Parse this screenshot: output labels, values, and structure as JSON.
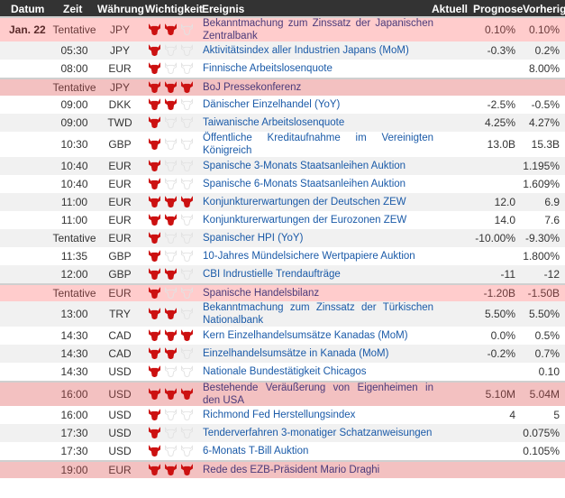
{
  "header": {
    "date": "Datum",
    "time": "Zeit",
    "currency": "Währung",
    "importance": "Wichtigkeit",
    "event": "Ereignis",
    "actual": "Aktuell",
    "forecast": "Prognose",
    "previous": "Vorherig"
  },
  "colors": {
    "bull_active": "#cc1111",
    "bull_inactive": "#e2e2e2",
    "header_bg": "#333333",
    "highlight": "#ffcccc",
    "highlight_dark": "#f3c1c1",
    "link": "#1a5aa8"
  },
  "rows": [
    {
      "date": "Jan. 22",
      "time": "Tentative",
      "currency": "JPY",
      "importance": 2,
      "event": "Bekanntmachung zum Zinssatz der Japanischen Zentralbank",
      "actual": "",
      "forecast": "0.10%",
      "previous": "0.10%",
      "style": "hi",
      "double": true
    },
    {
      "time": "05:30",
      "currency": "JPY",
      "importance": 1,
      "event": "Aktivitätsindex aller Industrien Japans (MoM)",
      "actual": "",
      "forecast": "-0.3%",
      "previous": "0.2%",
      "style": "alt"
    },
    {
      "time": "08:00",
      "currency": "EUR",
      "importance": 1,
      "event": "Finnische Arbeitslosenquote",
      "actual": "",
      "forecast": "",
      "previous": "8.00%",
      "style": ""
    },
    {
      "time": "Tentative",
      "currency": "JPY",
      "importance": 3,
      "event": "BoJ Pressekonferenz",
      "actual": "",
      "forecast": "",
      "previous": "",
      "style": "hi2"
    },
    {
      "time": "09:00",
      "currency": "DKK",
      "importance": 2,
      "event": "Dänischer Einzelhandel (YoY)",
      "actual": "",
      "forecast": "-2.5%",
      "previous": "-0.5%",
      "style": ""
    },
    {
      "time": "09:00",
      "currency": "TWD",
      "importance": 1,
      "event": "Taiwanische Arbeitslosenquote",
      "actual": "",
      "forecast": "4.25%",
      "previous": "4.27%",
      "style": "alt"
    },
    {
      "time": "10:30",
      "currency": "GBP",
      "importance": 1,
      "event": "Öffentliche Kreditaufnahme im Vereinigten Königreich",
      "actual": "",
      "forecast": "13.0B",
      "previous": "15.3B",
      "style": "",
      "double": true
    },
    {
      "time": "10:40",
      "currency": "EUR",
      "importance": 1,
      "event": "Spanische 3-Monats Staatsanleihen Auktion",
      "actual": "",
      "forecast": "",
      "previous": "1.195%",
      "style": "alt"
    },
    {
      "time": "10:40",
      "currency": "EUR",
      "importance": 1,
      "event": "Spanische 6-Monats Staatsanleihen Auktion",
      "actual": "",
      "forecast": "",
      "previous": "1.609%",
      "style": ""
    },
    {
      "time": "11:00",
      "currency": "EUR",
      "importance": 3,
      "event": "Konjunkturerwartungen der Deutschen ZEW",
      "actual": "",
      "forecast": "12.0",
      "previous": "6.9",
      "style": "alt"
    },
    {
      "time": "11:00",
      "currency": "EUR",
      "importance": 2,
      "event": "Konjunkturerwartungen der Eurozonen ZEW",
      "actual": "",
      "forecast": "14.0",
      "previous": "7.6",
      "style": ""
    },
    {
      "time": "Tentative",
      "currency": "EUR",
      "importance": 1,
      "event": "Spanischer HPI (YoY)",
      "actual": "",
      "forecast": "-10.00%",
      "previous": "-9.30%",
      "style": "alt"
    },
    {
      "time": "11:35",
      "currency": "GBP",
      "importance": 1,
      "event": "10-Jahres Mündelsichere Wertpapiere Auktion",
      "actual": "",
      "forecast": "",
      "previous": "1.800%",
      "style": ""
    },
    {
      "time": "12:00",
      "currency": "GBP",
      "importance": 2,
      "event": "CBI Indrustielle Trendaufträge",
      "actual": "",
      "forecast": "-11",
      "previous": "-12",
      "style": "alt"
    },
    {
      "time": "Tentative",
      "currency": "EUR",
      "importance": 1,
      "event": "Spanische Handelsbilanz",
      "actual": "",
      "forecast": "-1.20B",
      "previous": "-1.50B",
      "style": "hi"
    },
    {
      "time": "13:00",
      "currency": "TRY",
      "importance": 2,
      "event": "Bekanntmachung zum Zinssatz der Türkischen Nationalbank",
      "actual": "",
      "forecast": "5.50%",
      "previous": "5.50%",
      "style": "alt",
      "double": true
    },
    {
      "time": "14:30",
      "currency": "CAD",
      "importance": 3,
      "event": "Kern Einzelhandelsumsätze Kanadas (MoM)",
      "actual": "",
      "forecast": "0.0%",
      "previous": "0.5%",
      "style": ""
    },
    {
      "time": "14:30",
      "currency": "CAD",
      "importance": 2,
      "event": "Einzelhandelsumsätze in Kanada (MoM)",
      "actual": "",
      "forecast": "-0.2%",
      "previous": "0.7%",
      "style": "alt"
    },
    {
      "time": "14:30",
      "currency": "USD",
      "importance": 1,
      "event": "Nationale Bundestätigkeit Chicagos",
      "actual": "",
      "forecast": "",
      "previous": "0.10",
      "style": ""
    },
    {
      "time": "16:00",
      "currency": "USD",
      "importance": 3,
      "event": "Bestehende Veräußerung von Eigenheimen in den USA",
      "actual": "",
      "forecast": "5.10M",
      "previous": "5.04M",
      "style": "hi2",
      "double": true
    },
    {
      "time": "16:00",
      "currency": "USD",
      "importance": 1,
      "event": "Richmond Fed Herstellungsindex",
      "actual": "",
      "forecast": "4",
      "previous": "5",
      "style": ""
    },
    {
      "time": "17:30",
      "currency": "USD",
      "importance": 1,
      "event": "Tenderverfahren 3-monatiger Schatzanweisungen",
      "actual": "",
      "forecast": "",
      "previous": "0.075%",
      "style": "alt"
    },
    {
      "time": "17:30",
      "currency": "USD",
      "importance": 1,
      "event": "6-Monats T-Bill Auktion",
      "actual": "",
      "forecast": "",
      "previous": "0.105%",
      "style": ""
    },
    {
      "time": "19:00",
      "currency": "EUR",
      "importance": 3,
      "event": "Rede des EZB-Präsident Mario Draghi",
      "actual": "",
      "forecast": "",
      "previous": "",
      "style": "hi2"
    }
  ]
}
